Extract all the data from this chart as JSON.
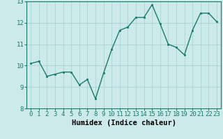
{
  "x": [
    0,
    1,
    2,
    3,
    4,
    5,
    6,
    7,
    8,
    9,
    10,
    11,
    12,
    13,
    14,
    15,
    16,
    17,
    18,
    19,
    20,
    21,
    22,
    23
  ],
  "y": [
    10.1,
    10.2,
    9.5,
    9.6,
    9.7,
    9.7,
    9.1,
    9.35,
    8.45,
    9.65,
    10.75,
    11.65,
    11.8,
    12.25,
    12.25,
    12.85,
    11.95,
    11.0,
    10.85,
    10.5,
    11.65,
    12.45,
    12.45,
    12.05
  ],
  "line_color": "#1a7a6a",
  "marker": "s",
  "marker_size": 2,
  "bg_color": "#cceaea",
  "grid_color": "#aad4d4",
  "xlabel": "Humidex (Indice chaleur)",
  "xlim_min": -0.5,
  "xlim_max": 23.5,
  "ylim": [
    8,
    13
  ],
  "yticks": [
    8,
    9,
    10,
    11,
    12,
    13
  ],
  "xticks": [
    0,
    1,
    2,
    3,
    4,
    5,
    6,
    7,
    8,
    9,
    10,
    11,
    12,
    13,
    14,
    15,
    16,
    17,
    18,
    19,
    20,
    21,
    22,
    23
  ],
  "tick_label_size": 6.5,
  "xlabel_size": 7.5,
  "linewidth": 1.0
}
